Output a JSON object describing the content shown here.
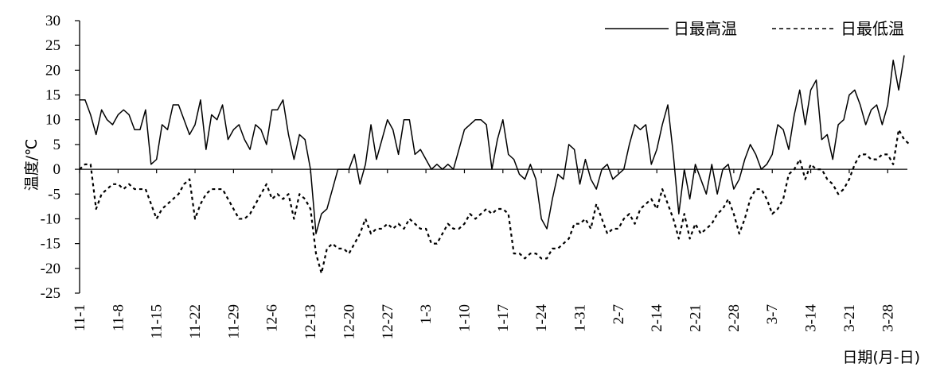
{
  "chart_data": {
    "type": "line",
    "title": "",
    "xlabel": "日期(月-日)",
    "ylabel": "温度/℃",
    "ylim": [
      -25,
      30
    ],
    "yticks": [
      30,
      25,
      20,
      15,
      10,
      5,
      0,
      -5,
      -10,
      -15,
      -20,
      -25
    ],
    "grid": false,
    "legend_position": "top-right",
    "x_tick_labels": [
      "11-1",
      "11-8",
      "11-15",
      "11-22",
      "11-29",
      "12-6",
      "12-13",
      "12-20",
      "12-27",
      "1-3",
      "1-10",
      "1-17",
      "1-24",
      "1-31",
      "2-7",
      "2-14",
      "2-21",
      "2-28",
      "3-7",
      "3-14",
      "3-21",
      "3-28"
    ],
    "x_tick_index": [
      0,
      7,
      14,
      21,
      28,
      35,
      42,
      49,
      56,
      63,
      70,
      77,
      84,
      91,
      98,
      105,
      112,
      119,
      126,
      133,
      140,
      147
    ],
    "series": [
      {
        "name": "日最高温",
        "style": "solid",
        "color": "#000000",
        "values": [
          14,
          14,
          11,
          7,
          12,
          10,
          9,
          11,
          12,
          11,
          8,
          8,
          12,
          1,
          2,
          9,
          8,
          13,
          13,
          10,
          7,
          9,
          14,
          4,
          11,
          10,
          13,
          6,
          8,
          9,
          6,
          4,
          9,
          8,
          5,
          12,
          12,
          14,
          7,
          2,
          7,
          6,
          0,
          -13,
          -9,
          -8,
          -4,
          0,
          0,
          0,
          3,
          -3,
          1,
          9,
          2,
          6,
          10,
          8,
          3,
          10,
          10,
          3,
          4,
          2,
          0,
          1,
          0,
          1,
          0,
          4,
          8,
          9,
          10,
          10,
          9,
          0,
          6,
          10,
          3,
          2,
          -1,
          -2,
          1,
          -2,
          -10,
          -12,
          -6,
          -1,
          -2,
          5,
          4,
          -3,
          2,
          -2,
          -4,
          0,
          1,
          -2,
          -1,
          0,
          5,
          9,
          8,
          9,
          1,
          4,
          9,
          13,
          3,
          -9,
          0,
          -6,
          1,
          -2,
          -5,
          1,
          -5,
          0,
          1,
          -4,
          -2,
          2,
          5,
          3,
          0,
          1,
          3,
          9,
          8,
          4,
          11,
          16,
          9,
          16,
          18,
          6,
          7,
          2,
          9,
          10,
          15,
          16,
          13,
          9,
          12,
          13,
          9,
          13,
          22,
          16,
          23
        ]
      },
      {
        "name": "日最低温",
        "style": "dashed",
        "color": "#000000",
        "values": [
          0,
          1,
          1,
          -8,
          -5,
          -4,
          -3,
          -3,
          -4,
          -3,
          -4,
          -4,
          -4,
          -7,
          -10,
          -8,
          -7,
          -6,
          -5,
          -3,
          -2,
          -10,
          -7,
          -5,
          -4,
          -4,
          -4,
          -6,
          -8,
          -10,
          -10,
          -9,
          -7,
          -5,
          -3,
          -6,
          -5,
          -6,
          -5,
          -10,
          -5,
          -6,
          -8,
          -17,
          -21,
          -16,
          -15,
          -16,
          -16,
          -17,
          -15,
          -13,
          -10,
          -13,
          -12,
          -12,
          -11,
          -12,
          -11,
          -12,
          -10,
          -11,
          -12,
          -12,
          -15,
          -15,
          -13,
          -11,
          -12,
          -12,
          -11,
          -9,
          -10,
          -9,
          -8,
          -9,
          -8,
          -8,
          -9,
          -17,
          -17,
          -18,
          -17,
          -17,
          -18,
          -18,
          -16,
          -16,
          -15,
          -14,
          -11,
          -11,
          -10,
          -12,
          -7,
          -10,
          -13,
          -12,
          -12,
          -10,
          -9,
          -11,
          -8,
          -7,
          -6,
          -8,
          -4,
          -7,
          -10,
          -14,
          -9,
          -14,
          -11,
          -13,
          -12,
          -11,
          -9,
          -8,
          -6,
          -9,
          -13,
          -10,
          -6,
          -4,
          -4,
          -6,
          -9,
          -8,
          -6,
          -1,
          0,
          2,
          -2,
          1,
          0,
          0,
          -2,
          -3,
          -5,
          -4,
          -2,
          1,
          3,
          3,
          2,
          2,
          3,
          3,
          1,
          8,
          6,
          5
        ]
      }
    ]
  }
}
